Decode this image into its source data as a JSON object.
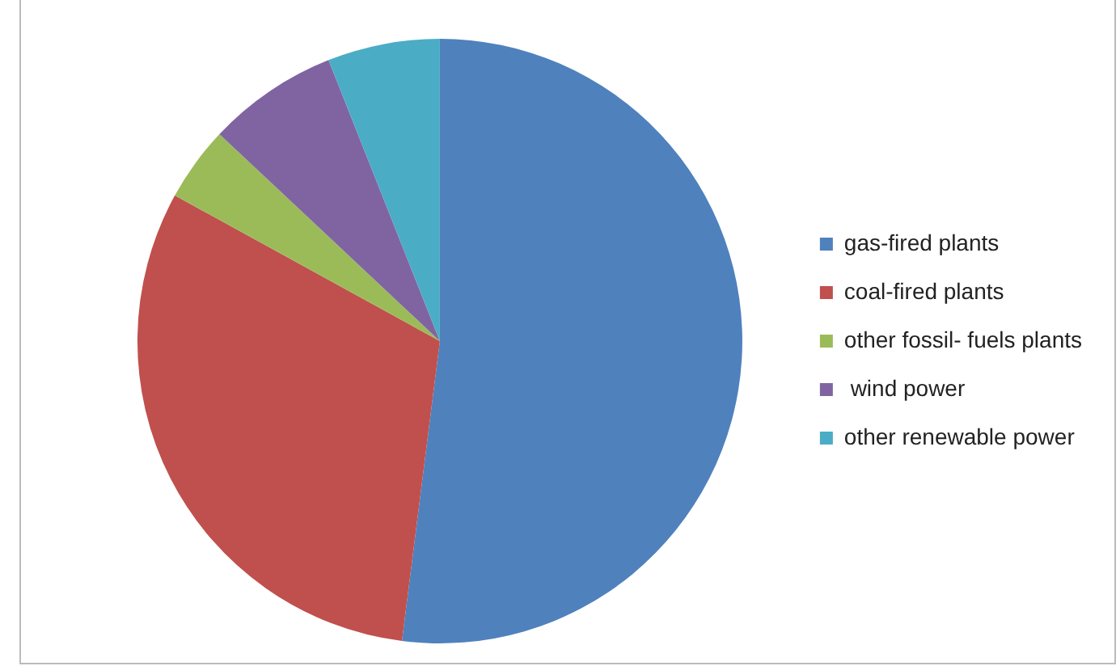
{
  "chart_data": {
    "type": "pie",
    "categories": [
      "gas-fired plants",
      "coal-fired plants",
      "other fossil- fuels plants",
      " wind power",
      "other renewable power"
    ],
    "values": [
      52,
      31,
      4,
      7,
      6
    ],
    "colors": [
      "#4f81bd",
      "#c0504d",
      "#9bbb59",
      "#8064a2",
      "#4bacc6"
    ],
    "legend": "right"
  }
}
